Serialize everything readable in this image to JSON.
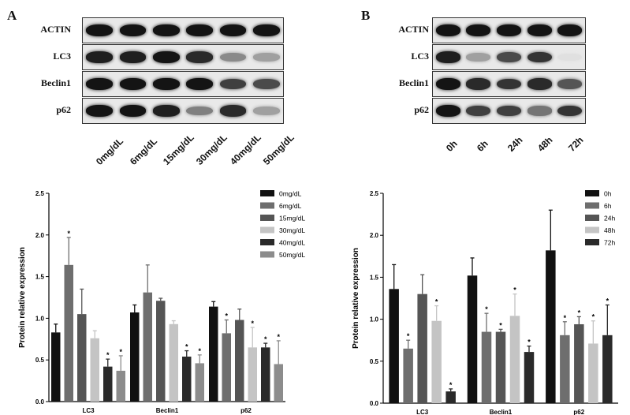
{
  "panels": [
    {
      "letter": "A",
      "blot": {
        "rows": [
          {
            "label": "ACTIN",
            "intensity": [
              1,
              1,
              1,
              1,
              1,
              1
            ]
          },
          {
            "label": "LC3",
            "intensity": [
              0.95,
              0.95,
              1,
              0.9,
              0.45,
              0.35
            ]
          },
          {
            "label": "Beclin1",
            "intensity": [
              1,
              1,
              1,
              1,
              0.8,
              0.75
            ]
          },
          {
            "label": "p62",
            "intensity": [
              1,
              1,
              0.95,
              0.5,
              0.9,
              0.35
            ]
          }
        ],
        "lanes": [
          "0mg/dL",
          "6mg/dL",
          "15mg/dL",
          "30mg/dL",
          "40mg/dL",
          "50mg/dL"
        ]
      }
    },
    {
      "letter": "B",
      "blot": {
        "rows": [
          {
            "label": "ACTIN",
            "intensity": [
              1,
              1,
              1,
              1,
              1
            ]
          },
          {
            "label": "LC3",
            "intensity": [
              0.95,
              0.35,
              0.75,
              0.85,
              0.05
            ]
          },
          {
            "label": "Beclin1",
            "intensity": [
              1,
              0.9,
              0.85,
              0.9,
              0.7
            ]
          },
          {
            "label": "p62",
            "intensity": [
              1,
              0.8,
              0.8,
              0.55,
              0.85
            ]
          }
        ],
        "lanes": [
          "0h",
          "6h",
          "24h",
          "48h",
          "72h"
        ]
      }
    }
  ],
  "chart_data": [
    {
      "type": "bar",
      "ylabel": "Protein relative expression",
      "ylim": [
        0,
        2.5
      ],
      "yticks": [
        "0.0",
        "0.5",
        "1.0",
        "1.5",
        "2.0",
        "2.5"
      ],
      "categories": [
        "LC3",
        "Beclin1",
        "p62"
      ],
      "legend_position": "top-right",
      "series": [
        {
          "name": "0mg/dL",
          "color": "#111111",
          "values": [
            0.83,
            1.07,
            1.14
          ],
          "errors": [
            0.1,
            0.09,
            0.06
          ],
          "sig": [
            false,
            false,
            false
          ]
        },
        {
          "name": "6mg/dL",
          "color": "#6e6e6e",
          "values": [
            1.64,
            1.31,
            0.82
          ],
          "errors": [
            0.33,
            0.33,
            0.16
          ],
          "sig": [
            true,
            false,
            true
          ]
        },
        {
          "name": "15mg/dL",
          "color": "#555555",
          "values": [
            1.05,
            1.21,
            0.98
          ],
          "errors": [
            0.3,
            0.03,
            0.13
          ],
          "sig": [
            false,
            false,
            false
          ]
        },
        {
          "name": "30mg/dL",
          "color": "#c4c4c4",
          "values": [
            0.76,
            0.93,
            0.65
          ],
          "errors": [
            0.09,
            0.04,
            0.24
          ],
          "sig": [
            false,
            false,
            true
          ]
        },
        {
          "name": "40mg/dL",
          "color": "#2a2a2a",
          "values": [
            0.42,
            0.54,
            0.65
          ],
          "errors": [
            0.09,
            0.07,
            0.05
          ],
          "sig": [
            true,
            true,
            true
          ]
        },
        {
          "name": "50mg/dL",
          "color": "#8c8c8c",
          "values": [
            0.37,
            0.46,
            0.45
          ],
          "errors": [
            0.18,
            0.1,
            0.28
          ],
          "sig": [
            true,
            true,
            true
          ]
        }
      ]
    },
    {
      "type": "bar",
      "ylabel": "Protein relative expression",
      "ylim": [
        0,
        2.5
      ],
      "yticks": [
        "0.0",
        "0.5",
        "1.0",
        "1.5",
        "2.0",
        "2.5"
      ],
      "categories": [
        "LC3",
        "Beclin1",
        "p62"
      ],
      "legend_position": "top-right",
      "series": [
        {
          "name": "0h",
          "color": "#111111",
          "values": [
            1.36,
            1.52,
            1.82
          ],
          "errors": [
            0.29,
            0.21,
            0.48
          ],
          "sig": [
            false,
            false,
            false
          ]
        },
        {
          "name": "6h",
          "color": "#6e6e6e",
          "values": [
            0.65,
            0.85,
            0.81
          ],
          "errors": [
            0.1,
            0.22,
            0.16
          ],
          "sig": [
            true,
            true,
            true
          ]
        },
        {
          "name": "24h",
          "color": "#555555",
          "values": [
            1.3,
            0.85,
            0.94
          ],
          "errors": [
            0.23,
            0.03,
            0.09
          ],
          "sig": [
            false,
            true,
            true
          ]
        },
        {
          "name": "48h",
          "color": "#c4c4c4",
          "values": [
            0.98,
            1.04,
            0.71
          ],
          "errors": [
            0.18,
            0.26,
            0.27
          ],
          "sig": [
            true,
            true,
            true
          ]
        },
        {
          "name": "72h",
          "color": "#2a2a2a",
          "values": [
            0.14,
            0.61,
            0.81
          ],
          "errors": [
            0.03,
            0.07,
            0.36
          ],
          "sig": [
            true,
            true,
            true
          ]
        }
      ]
    }
  ]
}
